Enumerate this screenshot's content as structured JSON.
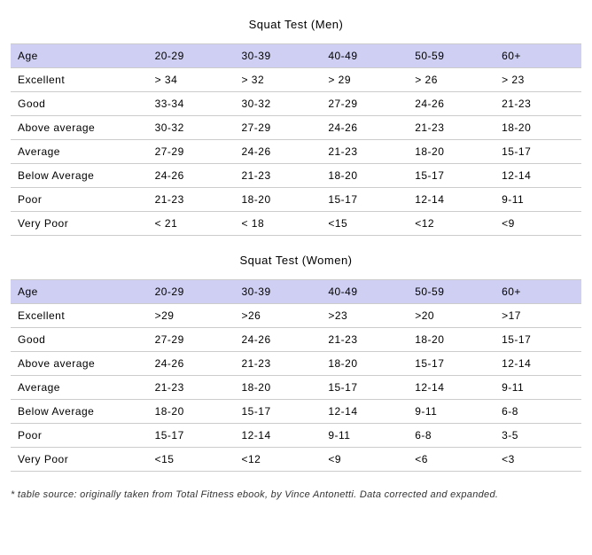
{
  "header_bg": "#cecff2",
  "border_color": "#cccccc",
  "tables": [
    {
      "title": "Squat Test (Men)",
      "columns": [
        "Age",
        "20-29",
        "30-39",
        "40-49",
        "50-59",
        "60+"
      ],
      "rows": [
        [
          "Excellent",
          "> 34",
          "> 32",
          "> 29",
          "> 26",
          "> 23"
        ],
        [
          "Good",
          "33-34",
          "30-32",
          "27-29",
          "24-26",
          "21-23"
        ],
        [
          "Above average",
          "30-32",
          "27-29",
          "24-26",
          "21-23",
          "18-20"
        ],
        [
          "Average",
          "27-29",
          "24-26",
          "21-23",
          "18-20",
          "15-17"
        ],
        [
          "Below Average",
          "24-26",
          "21-23",
          "18-20",
          "15-17",
          "12-14"
        ],
        [
          "Poor",
          "21-23",
          "18-20",
          "15-17",
          "12-14",
          "9-11"
        ],
        [
          "Very Poor",
          "< 21",
          "< 18",
          "<15",
          "<12",
          "<9"
        ]
      ]
    },
    {
      "title": "Squat Test (Women)",
      "columns": [
        "Age",
        "20-29",
        "30-39",
        "40-49",
        "50-59",
        "60+"
      ],
      "rows": [
        [
          "Excellent",
          ">29",
          ">26",
          ">23",
          ">20",
          ">17"
        ],
        [
          "Good",
          "27-29",
          "24-26",
          "21-23",
          "18-20",
          "15-17"
        ],
        [
          "Above average",
          "24-26",
          "21-23",
          "18-20",
          "15-17",
          "12-14"
        ],
        [
          "Average",
          "21-23",
          "18-20",
          "15-17",
          "12-14",
          "9-11"
        ],
        [
          "Below Average",
          "18-20",
          "15-17",
          "12-14",
          "9-11",
          "6-8"
        ],
        [
          "Poor",
          "15-17",
          "12-14",
          "9-11",
          "6-8",
          "3-5"
        ],
        [
          "Very Poor",
          "<15",
          "<12",
          "<9",
          "<6",
          "<3"
        ]
      ]
    }
  ],
  "footnote": "* table source: originally taken from Total Fitness ebook, by Vince Antonetti. Data corrected and expanded."
}
